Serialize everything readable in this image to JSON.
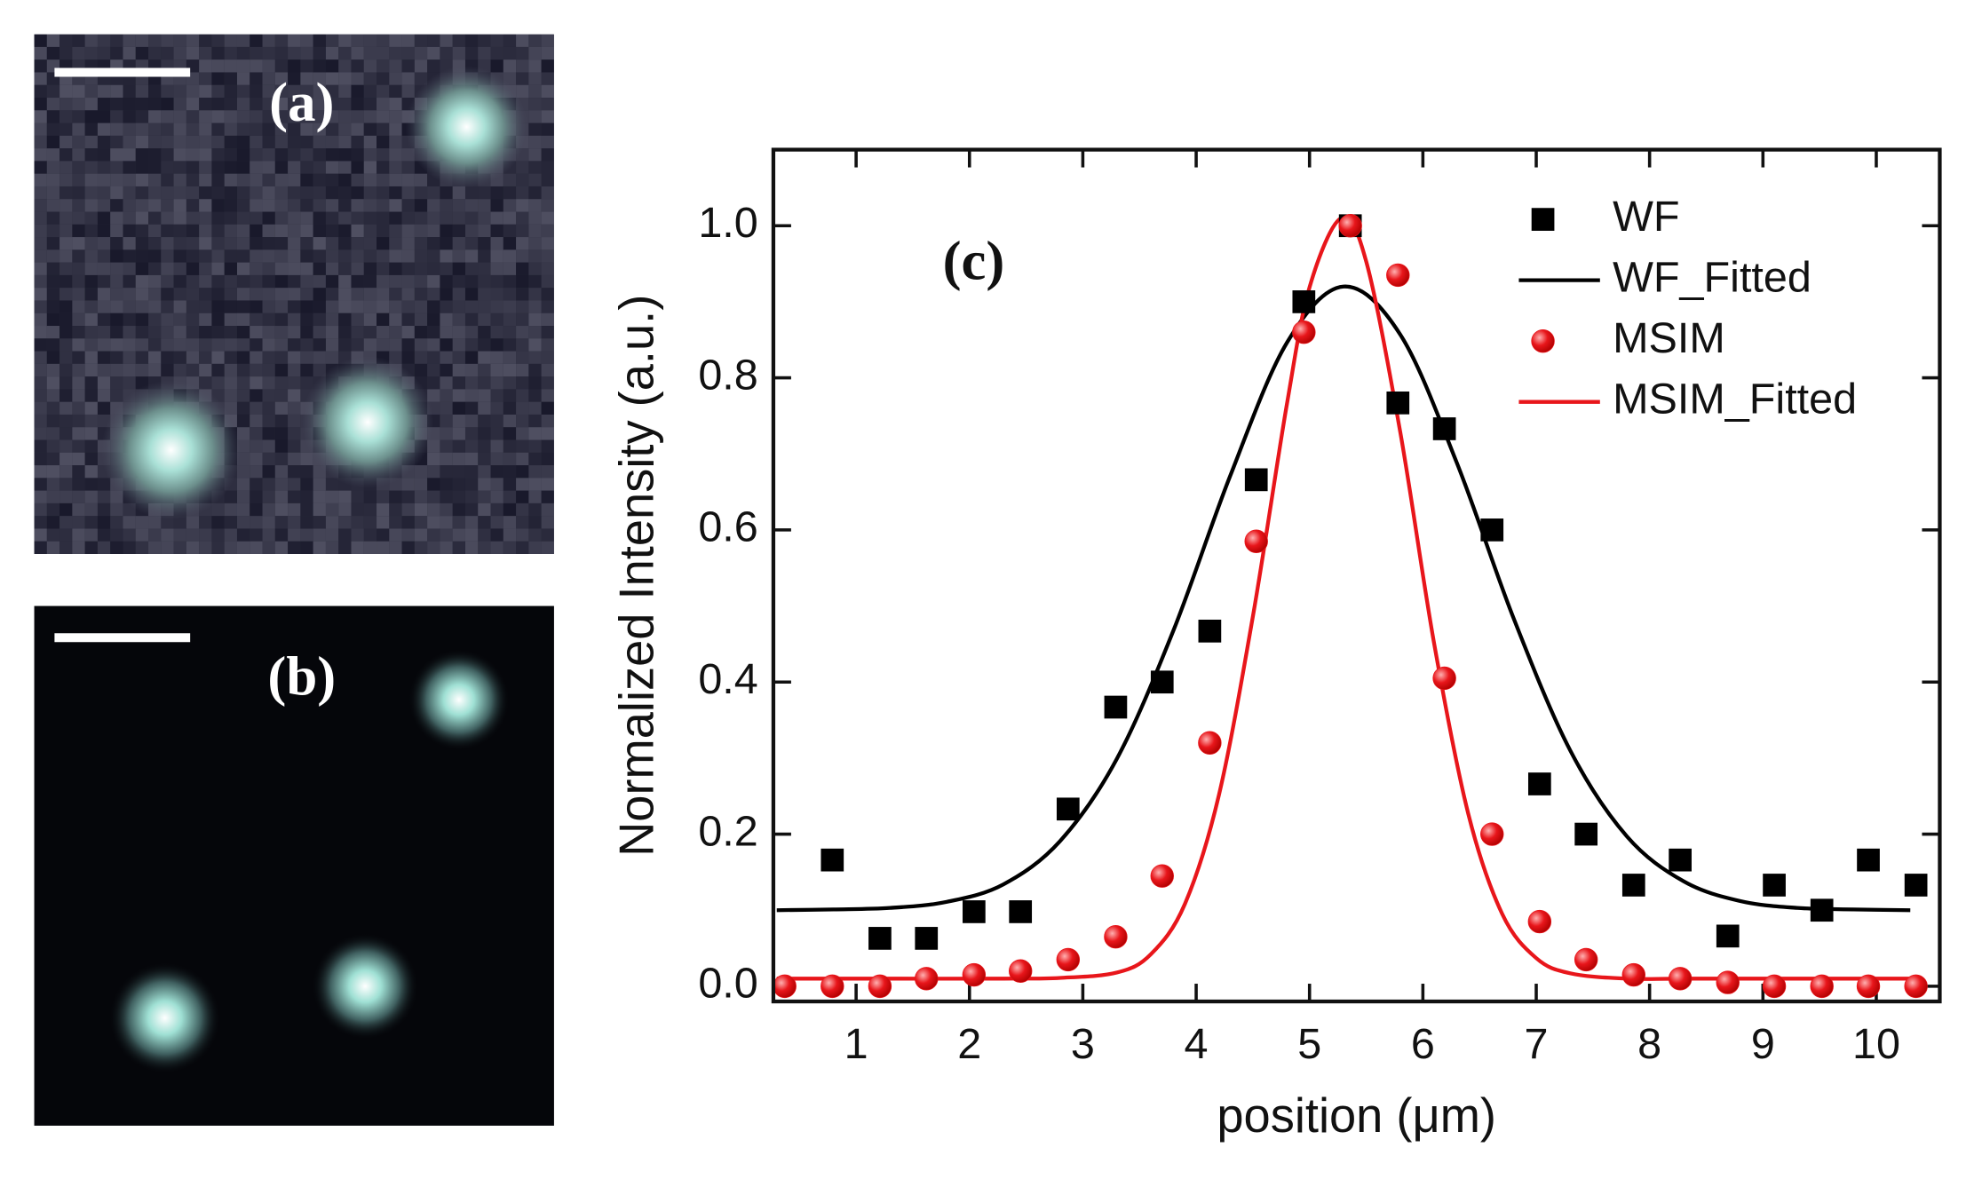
{
  "panels": [
    {
      "label": "(a)"
    },
    {
      "label": "(b)"
    }
  ],
  "chart_data": {
    "type": "scatter",
    "annotation": "(c)",
    "xlabel": "position (μm)",
    "ylabel": "Normalized Intensity (a.u.)",
    "xlim": [
      0.27,
      10.56
    ],
    "ylim": [
      -0.02,
      1.1
    ],
    "xticks": [
      1,
      2,
      3,
      4,
      5,
      6,
      7,
      8,
      9,
      10
    ],
    "yticks": [
      {
        "value": 0,
        "label": "0.0"
      },
      0.2,
      0.4,
      0.6,
      0.8,
      {
        "value": 1,
        "label": "1.0"
      }
    ],
    "legend": "upper right",
    "series": [
      {
        "name": "WF",
        "color": "#000000",
        "marker": "square",
        "x": [
          0.79,
          1.21,
          1.62,
          2.04,
          2.45,
          2.87,
          3.29,
          3.7,
          4.12,
          4.53,
          4.95,
          5.36,
          5.78,
          6.19,
          6.61,
          7.03,
          7.44,
          7.86,
          8.27,
          8.69,
          9.1,
          9.52,
          9.93,
          10.35
        ],
        "values": [
          0.166,
          0.063,
          0.063,
          0.098,
          0.098,
          0.233,
          0.367,
          0.4,
          0.467,
          0.666,
          0.9,
          1.0,
          0.767,
          0.733,
          0.6,
          0.266,
          0.2,
          0.133,
          0.166,
          0.066,
          0.133,
          0.1,
          0.166,
          0.133
        ]
      },
      {
        "name": "WF_Fitted",
        "color": "#000000",
        "style": "line",
        "x": [
          0.3,
          0.8,
          1.3,
          1.8,
          2.3,
          2.8,
          3.3,
          3.8,
          4.3,
          4.8,
          5.3,
          5.8,
          6.3,
          6.8,
          7.3,
          7.8,
          8.3,
          8.8,
          9.3,
          9.8,
          10.3
        ],
        "values": [
          0.1,
          0.101,
          0.103,
          0.111,
          0.134,
          0.191,
          0.299,
          0.468,
          0.671,
          0.846,
          0.92,
          0.857,
          0.688,
          0.484,
          0.31,
          0.197,
          0.138,
          0.112,
          0.103,
          0.101,
          0.1
        ]
      },
      {
        "name": "MSIM",
        "color": "#e8161b",
        "marker": "circle",
        "x": [
          0.37,
          0.79,
          1.21,
          1.62,
          2.04,
          2.45,
          2.87,
          3.29,
          3.7,
          4.12,
          4.53,
          4.95,
          5.36,
          5.78,
          6.19,
          6.61,
          7.03,
          7.44,
          7.86,
          8.27,
          8.69,
          9.1,
          9.52,
          9.93,
          10.35
        ],
        "values": [
          0,
          0,
          0,
          0.01,
          0.015,
          0.02,
          0.035,
          0.065,
          0.145,
          0.32,
          0.585,
          0.86,
          1.0,
          0.935,
          0.405,
          0.2,
          0.085,
          0.035,
          0.015,
          0.01,
          0.005,
          0,
          0,
          0,
          0
        ]
      },
      {
        "name": "MSIM_Fitted",
        "color": "#e8161b",
        "style": "line",
        "x": [
          0.3,
          1.3,
          2.3,
          2.8,
          3.3,
          3.6,
          3.9,
          4.2,
          4.5,
          4.8,
          5.0,
          5.28,
          5.5,
          5.8,
          6.1,
          6.4,
          6.7,
          7.0,
          7.3,
          7.8,
          8.3,
          9.3,
          10.3
        ],
        "values": [
          0.01,
          0.01,
          0.01,
          0.011,
          0.018,
          0.042,
          0.108,
          0.251,
          0.486,
          0.765,
          0.919,
          1.01,
          0.953,
          0.729,
          0.45,
          0.227,
          0.095,
          0.037,
          0.017,
          0.01,
          0.01,
          0.01,
          0.01
        ]
      }
    ]
  }
}
